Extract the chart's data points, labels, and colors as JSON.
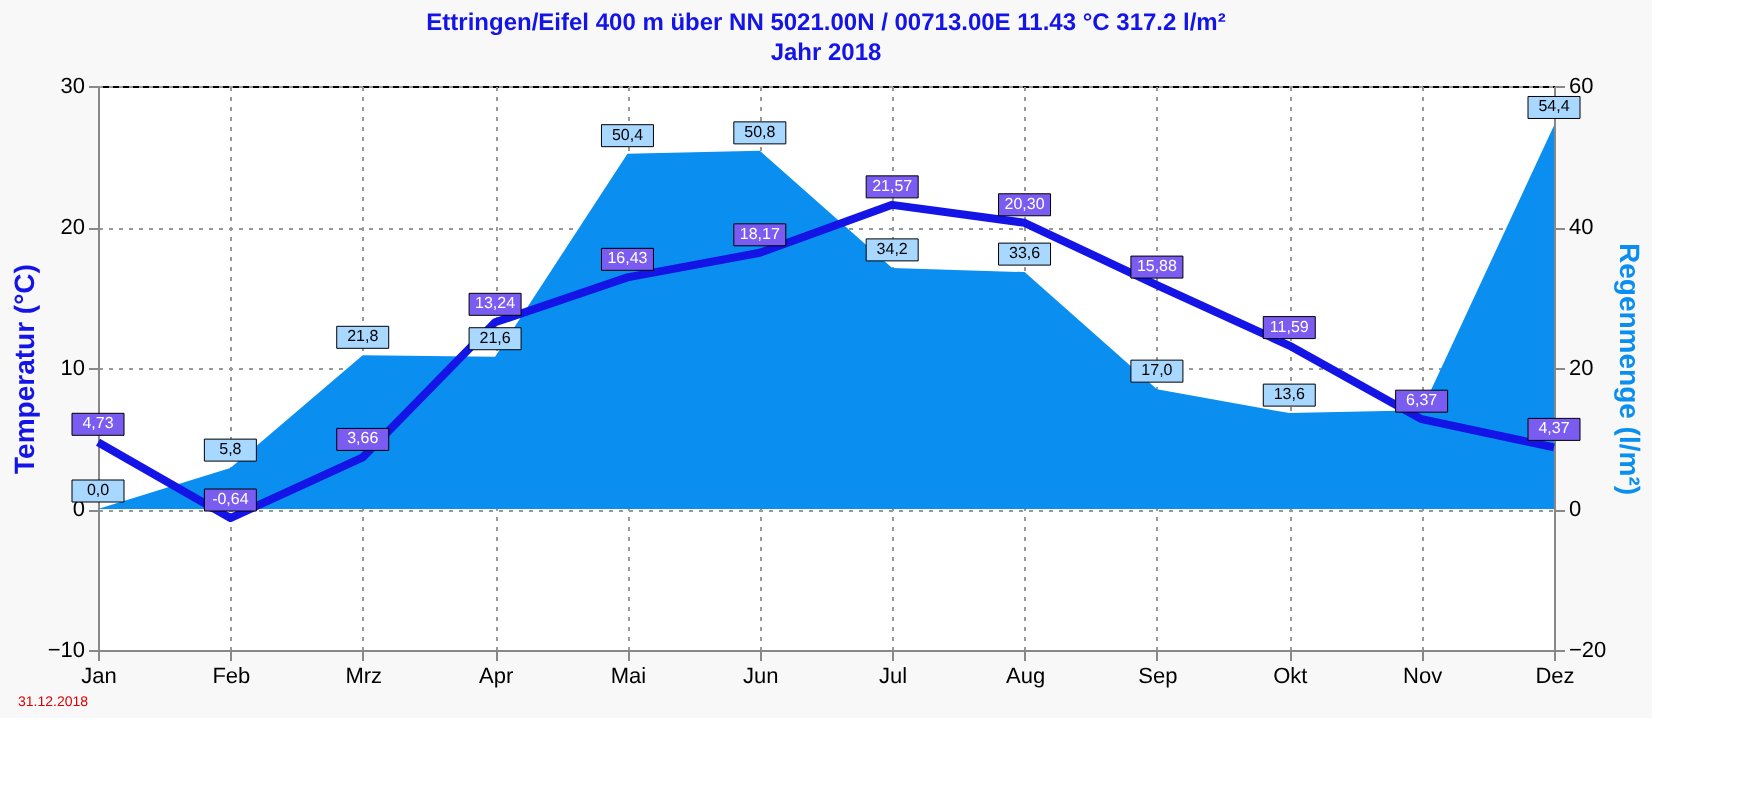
{
  "chart_data": {
    "type": "line",
    "title": "Ettringen/Eifel     400 m über NN        5021.00N / 00713.00E              11.43 °C      317.2 l/m²",
    "subtitle": "Jahr  2018",
    "ylabel": "Temperatur  (°C)",
    "y2label": "Regenmenge  (l/m²)",
    "categories": [
      "Jan",
      "Feb",
      "Mrz",
      "Apr",
      "Mai",
      "Jun",
      "Jul",
      "Aug",
      "Sep",
      "Okt",
      "Nov",
      "Dez"
    ],
    "series": [
      {
        "type": "area",
        "axis": "y2",
        "color": "#0a8ff0",
        "values": [
          0.0,
          5.8,
          21.8,
          21.6,
          50.4,
          50.8,
          34.2,
          33.6,
          17.0,
          13.6,
          14.0,
          54.4
        ],
        "value_labels": [
          "0,0",
          "5,8",
          "21,8",
          "21,6",
          "50,4",
          "50,8",
          "34,2",
          "33,6",
          "17,0",
          "13,6",
          null,
          "54,4"
        ]
      },
      {
        "color": "#1414e6",
        "values": [
          4.73,
          -0.64,
          3.66,
          13.24,
          16.43,
          18.17,
          21.57,
          20.3,
          15.88,
          11.59,
          6.37,
          4.37
        ],
        "value_labels": [
          "4,73",
          "-0,64",
          "3,66",
          "13,24",
          "16,43",
          "18,17",
          "21,57",
          "20,30",
          "15,88",
          "11,59",
          "6,37",
          "4,37"
        ]
      }
    ],
    "ylim": [
      -10,
      30
    ],
    "yticks": [
      -10,
      0,
      10,
      20,
      30
    ],
    "y2lim": [
      -20,
      60
    ],
    "y2ticks": [
      -20,
      0,
      20,
      40,
      60
    ],
    "grid": true,
    "line_style": "solid",
    "annotations": [
      "31.12.2018"
    ]
  }
}
